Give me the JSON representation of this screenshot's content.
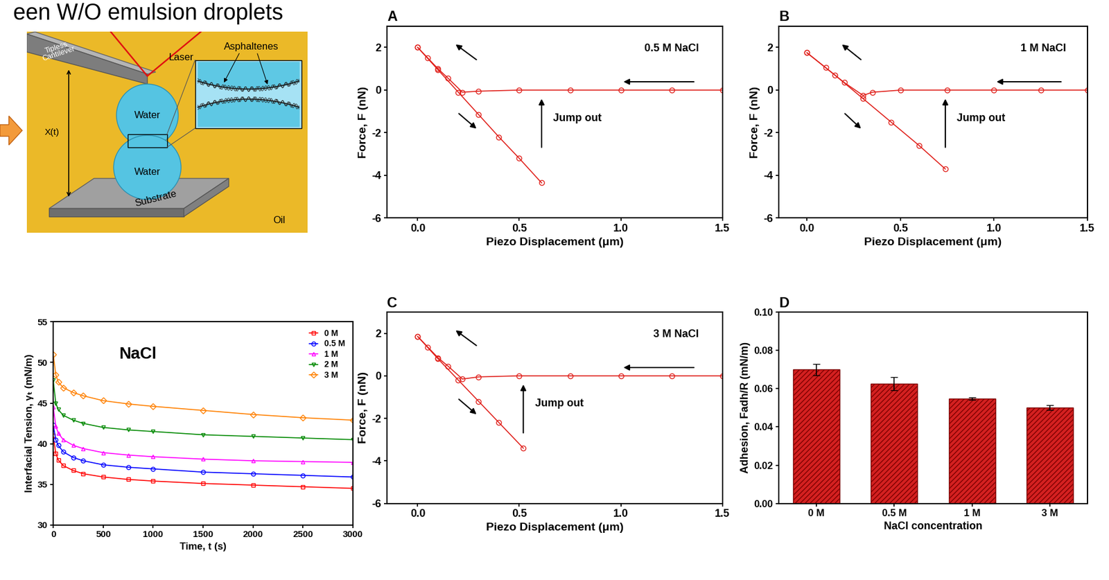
{
  "header": {
    "title": "een W/O emulsion droplets"
  },
  "diagram": {
    "cantilever": "Tipless\nCantilever",
    "laser": "Laser",
    "asphaltenes": "Asphaltenes",
    "droplets": [
      "Water",
      "Water"
    ],
    "distance": "X(t)",
    "substrate": "Substrate",
    "medium": "Oil"
  },
  "chart_data": [
    {
      "type": "line",
      "x_label": "Time, t (s)",
      "y_label": "Interfacial Tension, γₜ (mN/m)",
      "annotations": [
        "NaCl"
      ],
      "legend": "upper right",
      "x": [
        0,
        25,
        50,
        100,
        200,
        300,
        500,
        750,
        1000,
        1500,
        2000,
        2500,
        3000
      ],
      "series": [
        {
          "name": "0 M",
          "color": "#ff0000",
          "marker": "square",
          "values": [
            41.0,
            38.8,
            38.0,
            37.3,
            36.7,
            36.3,
            35.9,
            35.6,
            35.4,
            35.1,
            34.9,
            34.7,
            34.5
          ]
        },
        {
          "name": "0.5 M",
          "color": "#0000ff",
          "marker": "circle",
          "values": [
            42.3,
            40.5,
            39.8,
            39.0,
            38.3,
            37.9,
            37.4,
            37.1,
            36.9,
            36.5,
            36.3,
            36.1,
            35.9
          ]
        },
        {
          "name": "1 M",
          "color": "#ff00ff",
          "marker": "triangle_up",
          "values": [
            44.5,
            42.2,
            41.3,
            40.5,
            39.8,
            39.4,
            38.9,
            38.6,
            38.4,
            38.1,
            37.9,
            37.8,
            37.7
          ]
        },
        {
          "name": "2 M",
          "color": "#008800",
          "marker": "triangle_down",
          "values": [
            47.8,
            45.0,
            44.2,
            43.5,
            42.9,
            42.5,
            42.0,
            41.7,
            41.5,
            41.1,
            40.9,
            40.7,
            40.5
          ]
        },
        {
          "name": "3 M",
          "color": "#ff8000",
          "marker": "diamond",
          "values": [
            51.0,
            48.5,
            47.6,
            46.9,
            46.3,
            45.9,
            45.3,
            44.9,
            44.6,
            44.1,
            43.6,
            43.2,
            42.9
          ]
        }
      ],
      "xlim": [
        0,
        3000
      ],
      "xticks": [
        0,
        500,
        1000,
        1500,
        2000,
        2500,
        3000
      ],
      "ylim": [
        30,
        55
      ],
      "yticks": [
        30,
        35,
        40,
        45,
        50,
        55
      ]
    },
    {
      "type": "line",
      "title": "A",
      "x_label": "Piezo Displacement (μm)",
      "y_label": "Force, F (nN)",
      "annotations": [
        "0.5 M NaCl",
        "Jump out"
      ],
      "series": [
        {
          "color": "#e0201b",
          "marker": "circle",
          "x": [
            1.5,
            1.25,
            1.0,
            0.75,
            0.5,
            0.3,
            0.22,
            0.15,
            0.1,
            0.05,
            0.0
          ],
          "values": [
            0,
            0,
            0,
            0,
            0,
            -0.05,
            -0.1,
            0.55,
            1.0,
            1.5,
            2.0
          ]
        },
        {
          "color": "#e0201b",
          "marker": "circle",
          "x": [
            0.0,
            0.1,
            0.2,
            0.3,
            0.4,
            0.5,
            0.61
          ],
          "values": [
            2.0,
            0.95,
            -0.1,
            -1.15,
            -2.2,
            -3.2,
            -4.35
          ]
        }
      ],
      "xlim": [
        -0.15,
        1.5
      ],
      "xticks": [
        {
          "value": 0,
          "label": "0.0"
        },
        0.5,
        {
          "value": 1,
          "label": "1.0"
        },
        1.5
      ],
      "ylim": [
        -6,
        3
      ],
      "yticks": [
        -6,
        -4,
        -2,
        0,
        2
      ]
    },
    {
      "type": "line",
      "title": "B",
      "x_label": "Piezo Displacement (μm)",
      "y_label": "Force, F (nN)",
      "annotations": [
        "1 M NaCl",
        "Jump out"
      ],
      "series": [
        {
          "color": "#e0201b",
          "marker": "circle",
          "x": [
            1.5,
            1.25,
            1.0,
            0.75,
            0.5,
            0.35,
            0.3,
            0.2,
            0.1,
            0.0
          ],
          "values": [
            0,
            0,
            0,
            0,
            0,
            -0.1,
            -0.25,
            0.35,
            1.05,
            1.75
          ]
        },
        {
          "color": "#e0201b",
          "marker": "circle",
          "x": [
            0.0,
            0.15,
            0.3,
            0.45,
            0.6,
            0.74
          ],
          "values": [
            1.75,
            0.7,
            -0.4,
            -1.5,
            -2.6,
            -3.7
          ]
        }
      ],
      "xlim": [
        -0.15,
        1.5
      ],
      "xticks": [
        {
          "value": 0,
          "label": "0.0"
        },
        0.5,
        {
          "value": 1,
          "label": "1.0"
        },
        1.5
      ],
      "ylim": [
        -6,
        3
      ],
      "yticks": [
        -6,
        -4,
        -2,
        0,
        2
      ]
    },
    {
      "type": "line",
      "title": "C",
      "x_label": "Piezo Displacement (μm)",
      "y_label": "Force, F (nN)",
      "annotations": [
        "3 M NaCl",
        "Jump out"
      ],
      "series": [
        {
          "color": "#e0201b",
          "marker": "circle",
          "x": [
            1.5,
            1.25,
            1.0,
            0.75,
            0.5,
            0.3,
            0.22,
            0.15,
            0.1,
            0.05,
            0.0
          ],
          "values": [
            0,
            0,
            0,
            0,
            0,
            -0.05,
            -0.15,
            0.45,
            0.85,
            1.35,
            1.85
          ]
        },
        {
          "color": "#e0201b",
          "marker": "circle",
          "x": [
            0.0,
            0.1,
            0.2,
            0.3,
            0.4,
            0.52
          ],
          "values": [
            1.85,
            0.8,
            -0.2,
            -1.2,
            -2.2,
            -3.4
          ]
        }
      ],
      "xlim": [
        -0.15,
        1.5
      ],
      "xticks": [
        {
          "value": 0,
          "label": "0.0"
        },
        0.5,
        {
          "value": 1,
          "label": "1.0"
        },
        1.5
      ],
      "ylim": [
        -6,
        3
      ],
      "yticks": [
        -6,
        -4,
        -2,
        0,
        2
      ]
    },
    {
      "type": "bar",
      "title": "D",
      "x_label": "NaCl concentration",
      "y_label": "Adhesion, Fadh/R (mN/m)",
      "categories": [
        "0 M",
        "0.5 M",
        "1 M",
        "3 M"
      ],
      "values": [
        0.07,
        0.0625,
        0.0548,
        0.05
      ],
      "errors": [
        0.003,
        0.0035,
        0.0007,
        0.0013
      ],
      "color": "#d42020",
      "ylim": [
        0,
        0.1
      ],
      "yticks": [
        {
          "value": 0,
          "label": "0.00"
        },
        0.02,
        0.04,
        0.06,
        0.08,
        {
          "value": 0.1,
          "label": "0.10"
        }
      ]
    }
  ]
}
